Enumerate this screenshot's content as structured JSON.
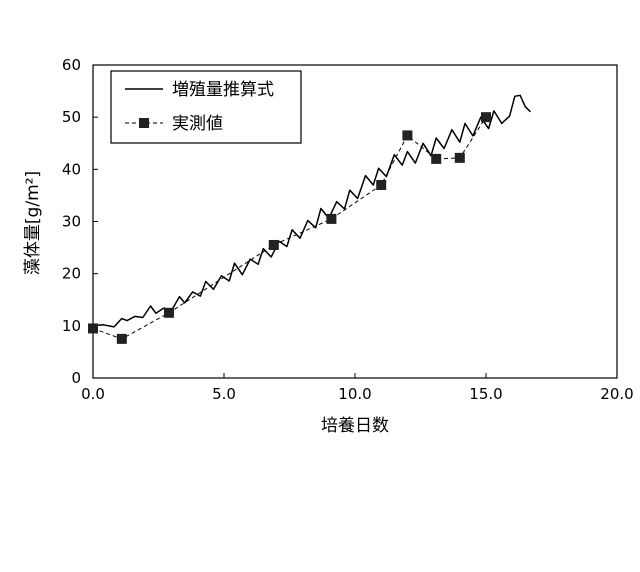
{
  "chart_data": {
    "type": "line",
    "xlabel": "培養日数",
    "ylabel": "藻体量[g/m²]",
    "xlim": [
      0,
      20
    ],
    "ylim": [
      0,
      60
    ],
    "x_ticks": [
      "0.0",
      "5.0",
      "10.0",
      "15.0",
      "20.0"
    ],
    "y_ticks": [
      "0",
      "10",
      "20",
      "30",
      "40",
      "50",
      "60"
    ],
    "legend_position": "top-left",
    "grid": false,
    "series": [
      {
        "name": "増殖量推算式",
        "style": "solid",
        "x": [
          0.0,
          0.4,
          0.8,
          1.1,
          1.3,
          1.6,
          1.9,
          2.2,
          2.4,
          2.7,
          3.0,
          3.3,
          3.5,
          3.8,
          4.1,
          4.3,
          4.6,
          4.9,
          5.2,
          5.4,
          5.7,
          6.0,
          6.3,
          6.5,
          6.8,
          7.1,
          7.4,
          7.6,
          7.9,
          8.2,
          8.5,
          8.7,
          9.0,
          9.3,
          9.6,
          9.8,
          10.1,
          10.4,
          10.7,
          10.9,
          11.2,
          11.5,
          11.8,
          12.0,
          12.3,
          12.6,
          12.9,
          13.1,
          13.4,
          13.7,
          14.0,
          14.2,
          14.5,
          14.8,
          15.1,
          15.3,
          15.6,
          15.9,
          16.1,
          16.3,
          16.5,
          16.7
        ],
        "y": [
          10.0,
          10.2,
          9.8,
          11.4,
          11.0,
          11.8,
          11.6,
          13.8,
          12.4,
          13.4,
          13.0,
          15.6,
          14.4,
          16.5,
          15.7,
          18.5,
          17.0,
          19.6,
          18.6,
          22.0,
          19.8,
          22.8,
          21.8,
          24.8,
          23.2,
          26.2,
          25.2,
          28.4,
          26.8,
          30.2,
          28.8,
          32.5,
          30.6,
          33.8,
          32.4,
          36.0,
          34.4,
          38.8,
          37.0,
          40.2,
          38.6,
          42.8,
          40.8,
          43.4,
          41.2,
          45.0,
          42.6,
          46.0,
          44.0,
          47.6,
          45.2,
          48.8,
          46.4,
          50.0,
          47.8,
          51.2,
          48.8,
          50.2,
          54.0,
          54.2,
          52.0,
          51.0
        ]
      },
      {
        "name": "実測値",
        "style": "dashed-with-square-markers",
        "x": [
          0.0,
          1.1,
          2.9,
          6.9,
          9.1,
          11.0,
          12.0,
          13.1,
          14.0,
          15.0
        ],
        "y": [
          9.5,
          7.5,
          12.5,
          25.5,
          30.5,
          37.0,
          46.5,
          42.0,
          42.2,
          50.0
        ]
      }
    ]
  }
}
